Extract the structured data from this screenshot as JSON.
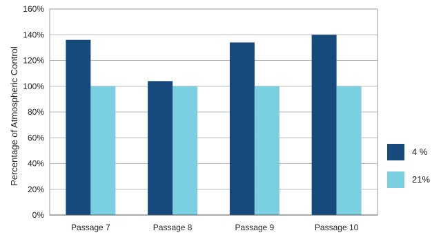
{
  "chart_data": {
    "type": "bar",
    "title": "",
    "xlabel": "",
    "ylabel": "Percentage of Atmospheric Control",
    "categories": [
      "Passage 7",
      "Passage 8",
      "Passage 9",
      "Passage 10"
    ],
    "series": [
      {
        "name": "4 %",
        "values": [
          136,
          104,
          134,
          140
        ],
        "color": "#174a7c"
      },
      {
        "name": "21%",
        "values": [
          100,
          100,
          100,
          100
        ],
        "color": "#7ad0e0"
      }
    ],
    "ylim": [
      0,
      160
    ],
    "yticks": [
      0,
      20,
      40,
      60,
      80,
      100,
      120,
      140,
      160
    ],
    "ytick_labels": [
      "0%",
      "20%",
      "40%",
      "60%",
      "80%",
      "100%",
      "120%",
      "140%",
      "160%"
    ],
    "grid": true,
    "legend_position": "right"
  }
}
